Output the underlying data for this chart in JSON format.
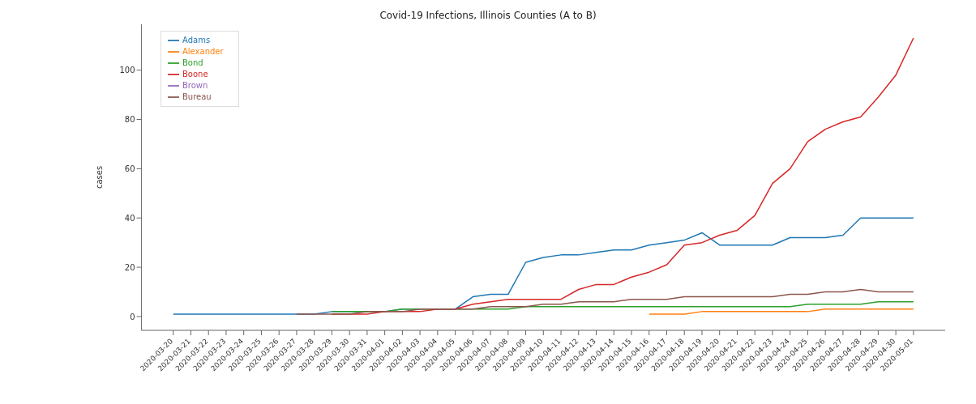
{
  "chart_data": {
    "type": "line",
    "title": "Covid-19 Infections, Illinois Counties (A to B)",
    "ylabel": "cases",
    "categories": [
      "2020-03-20",
      "2020-03-21",
      "2020-03-22",
      "2020-03-23",
      "2020-03-24",
      "2020-03-25",
      "2020-03-26",
      "2020-03-27",
      "2020-03-28",
      "2020-03-29",
      "2020-03-30",
      "2020-03-31",
      "2020-04-01",
      "2020-04-02",
      "2020-04-03",
      "2020-04-04",
      "2020-04-05",
      "2020-04-06",
      "2020-04-07",
      "2020-04-08",
      "2020-04-09",
      "2020-04-10",
      "2020-04-11",
      "2020-04-12",
      "2020-04-13",
      "2020-04-14",
      "2020-04-15",
      "2020-04-16",
      "2020-04-17",
      "2020-04-18",
      "2020-04-19",
      "2020-04-20",
      "2020-04-21",
      "2020-04-22",
      "2020-04-23",
      "2020-04-24",
      "2020-04-25",
      "2020-04-26",
      "2020-04-27",
      "2020-04-28",
      "2020-04-29",
      "2020-04-30",
      "2020-05-01"
    ],
    "series": [
      {
        "name": "Adams",
        "color": "#1f77b4",
        "values": [
          1,
          1,
          1,
          1,
          1,
          1,
          1,
          1,
          1,
          2,
          2,
          2,
          2,
          3,
          3,
          3,
          3,
          8,
          9,
          9,
          22,
          24,
          25,
          25,
          26,
          27,
          27,
          29,
          30,
          31,
          34,
          29,
          29,
          29,
          29,
          32,
          32,
          32,
          33,
          40,
          40,
          40,
          40
        ]
      },
      {
        "name": "Alexander",
        "color": "#ff7f0e",
        "values": [
          null,
          null,
          null,
          null,
          null,
          null,
          null,
          null,
          null,
          null,
          null,
          null,
          null,
          null,
          null,
          null,
          null,
          null,
          null,
          null,
          null,
          null,
          null,
          null,
          null,
          null,
          null,
          1,
          1,
          1,
          2,
          2,
          2,
          2,
          2,
          2,
          2,
          3,
          3,
          3,
          3,
          3,
          3
        ]
      },
      {
        "name": "Bond",
        "color": "#2ca02c",
        "values": [
          null,
          null,
          null,
          null,
          null,
          null,
          null,
          null,
          null,
          2,
          2,
          2,
          2,
          3,
          3,
          3,
          3,
          3,
          3,
          3,
          4,
          4,
          4,
          4,
          4,
          4,
          4,
          4,
          4,
          4,
          4,
          4,
          4,
          4,
          4,
          4,
          5,
          5,
          5,
          5,
          6,
          6,
          6
        ]
      },
      {
        "name": "Boone",
        "color": "#d62728",
        "values": [
          null,
          null,
          null,
          null,
          null,
          null,
          null,
          null,
          null,
          1,
          1,
          1,
          2,
          2,
          2,
          3,
          3,
          5,
          6,
          7,
          7,
          7,
          7,
          11,
          13,
          13,
          16,
          18,
          21,
          29,
          30,
          33,
          35,
          41,
          54,
          60,
          71,
          76,
          79,
          81,
          89,
          98,
          113
        ]
      },
      {
        "name": "Brown",
        "color": "#9467bd",
        "values": [
          null,
          null,
          null,
          null,
          null,
          null,
          null,
          null,
          null,
          null,
          null,
          null,
          null,
          null,
          null,
          null,
          null,
          null,
          null,
          null,
          null,
          null,
          null,
          null,
          null,
          null,
          null,
          null,
          null,
          null,
          null,
          null,
          null,
          null,
          null,
          null,
          null,
          null,
          null,
          null,
          null,
          null,
          null
        ]
      },
      {
        "name": "Bureau",
        "color": "#8c564b",
        "values": [
          null,
          null,
          null,
          null,
          null,
          null,
          null,
          1,
          1,
          1,
          1,
          2,
          2,
          2,
          3,
          3,
          3,
          3,
          4,
          4,
          4,
          5,
          5,
          6,
          6,
          6,
          7,
          7,
          7,
          8,
          8,
          8,
          8,
          8,
          8,
          9,
          9,
          10,
          10,
          11,
          10,
          10,
          10
        ]
      }
    ],
    "ylim": [
      -5.6,
      118.6
    ],
    "yticks": [
      0,
      20,
      40,
      60,
      80,
      100
    ],
    "grid": false,
    "legend": "top left"
  }
}
